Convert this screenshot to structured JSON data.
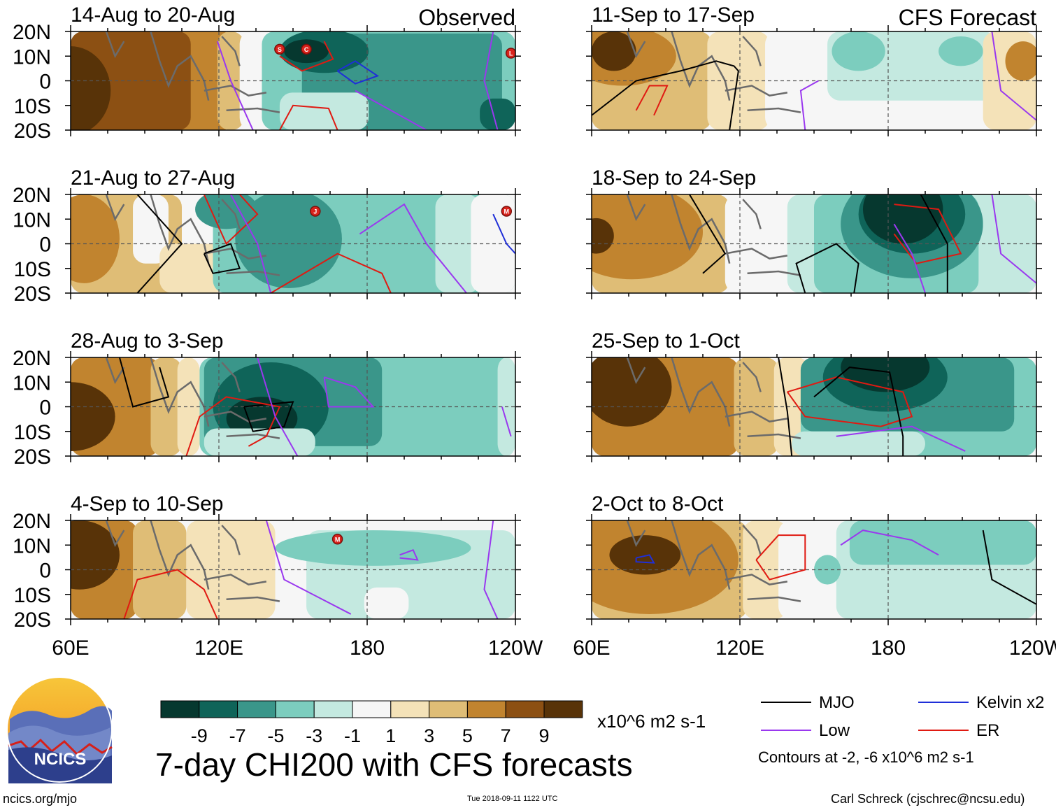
{
  "figure_title": "7-day CHI200 with CFS forecasts",
  "footer": {
    "site": "ncics.org/mjo",
    "timestamp": "Tue 2018-09-11 1122 UTC",
    "author": "Carl Schreck (cjschrec@ncsu.edu)"
  },
  "logo": {
    "text": "NCICS"
  },
  "colorbar": {
    "units": "x10^6 m2 s-1",
    "tick_labels": [
      "-9",
      "-7",
      "-5",
      "-3",
      "-1",
      "1",
      "3",
      "5",
      "7",
      "9"
    ],
    "colors": [
      "#06382f",
      "#0f6459",
      "#3a968a",
      "#7ccdbe",
      "#c4e9e0",
      "#f6f6f6",
      "#f4e2b8",
      "#dfbd76",
      "#c1842f",
      "#8c5013",
      "#583308"
    ]
  },
  "legend": {
    "items": [
      {
        "label": "MJO",
        "color": "#000000"
      },
      {
        "label": "Kelvin x2",
        "color": "#1f2fd8"
      },
      {
        "label": "Low",
        "color": "#9a38ef"
      },
      {
        "label": "ER",
        "color": "#e01a12"
      }
    ],
    "note": "Contours at -2, -6 x10^6 m2 s-1"
  },
  "chart_data": {
    "type": "heatmap",
    "variable": "7-day CHI200",
    "x_ticks": [
      "60E",
      "120E",
      "180",
      "120W"
    ],
    "y_ticks": [
      "20N",
      "10N",
      "0",
      "10S",
      "20S"
    ],
    "columns": [
      {
        "heading": "Observed",
        "panels": [
          {
            "label": "14-Aug to 20-Aug",
            "storms": [
              "S",
              "C",
              "L"
            ]
          },
          {
            "label": "21-Aug to 27-Aug",
            "storms": [
              "J",
              "M"
            ]
          },
          {
            "label": "28-Aug to 3-Sep",
            "storms": []
          },
          {
            "label": "4-Sep to 10-Sep",
            "storms": [
              "M"
            ]
          }
        ]
      },
      {
        "heading": "CFS Forecast",
        "panels": [
          {
            "label": "11-Sep to 17-Sep",
            "storms": []
          },
          {
            "label": "18-Sep to 24-Sep",
            "storms": []
          },
          {
            "label": "25-Sep to 1-Oct",
            "storms": []
          },
          {
            "label": "2-Oct to 8-Oct",
            "storms": []
          }
        ]
      }
    ]
  }
}
